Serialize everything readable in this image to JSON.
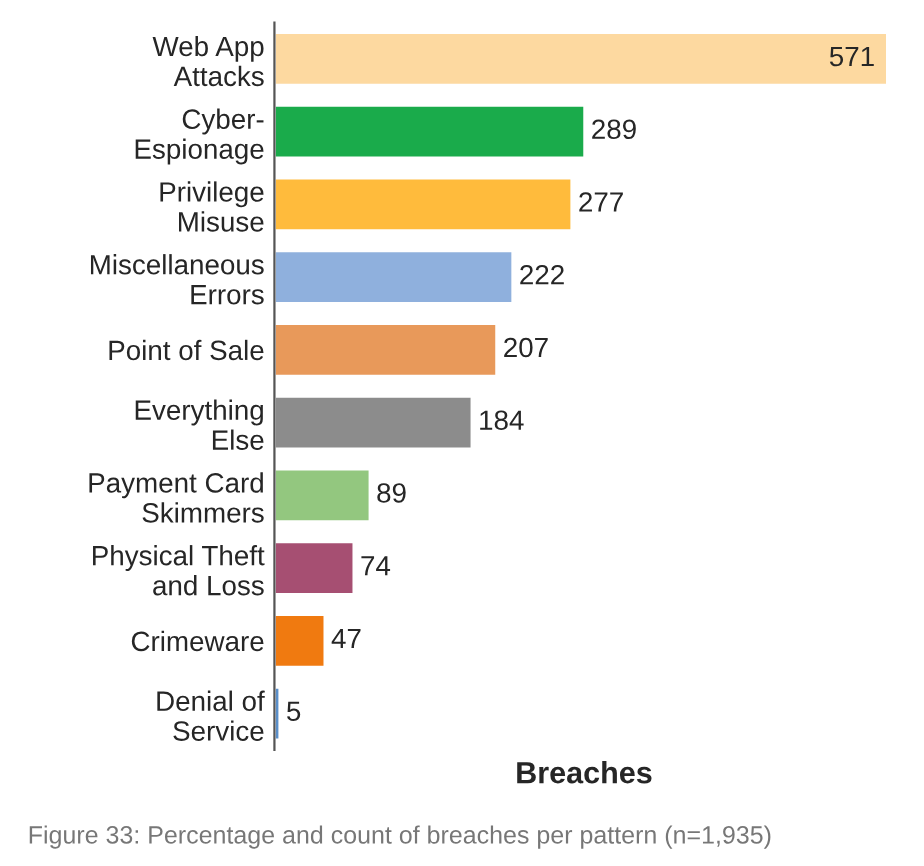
{
  "chart_data": {
    "type": "bar",
    "orientation": "horizontal",
    "xlabel": "Breaches",
    "categories": [
      "Web App\nAttacks",
      "Cyber-\nEspionage",
      "Privilege\nMisuse",
      "Miscellaneous\nErrors",
      "Point of Sale",
      "Everything\nElse",
      "Payment Card\nSkimmers",
      "Physical Theft\nand Loss",
      "Crimeware",
      "Denial of\nService"
    ],
    "values": [
      571,
      289,
      277,
      222,
      207,
      184,
      89,
      74,
      47,
      5
    ],
    "colors": [
      "#fdd9a0",
      "#1aab4b",
      "#ffbb3c",
      "#8fb0dd",
      "#e8995a",
      "#8c8c8c",
      "#93c77f",
      "#a64f72",
      "#f07a10",
      "#5a8fc9"
    ],
    "data_labels": true,
    "annotations": [
      "Figure 33: Percentage and count of breaches per pattern (n=1,935)"
    ]
  }
}
